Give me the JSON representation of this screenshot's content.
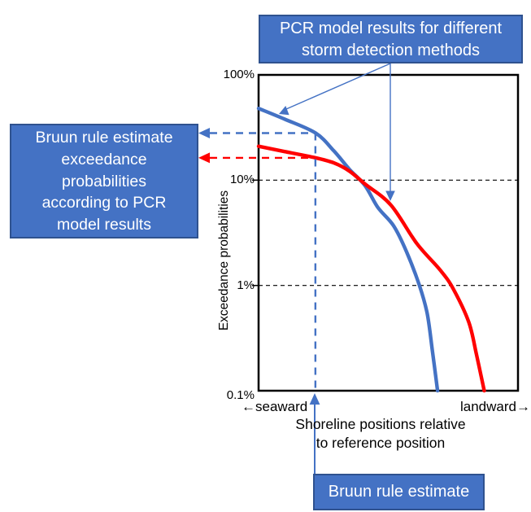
{
  "colors": {
    "accent_blue": "#4472C4",
    "accent_blue_dark": "#2F528F",
    "accent_red": "#FF0000",
    "axis_black": "#000000",
    "background": "#FFFFFF",
    "callout_text": "#FFFFFF"
  },
  "annotations": {
    "top_box": {
      "lines": [
        "PCR model results for different",
        "storm detection methods"
      ]
    },
    "left_box": {
      "lines": [
        "Bruun rule estimate",
        "exceedance",
        "probabilities",
        "according to PCR",
        "model results"
      ]
    },
    "bottom_box": {
      "label": "Bruun rule estimate"
    }
  },
  "axes": {
    "ylabel": "Exceedance probabilities",
    "xlabel_lines": [
      "Shoreline positions relative",
      "to reference position"
    ],
    "x_left_label": "←seaward",
    "x_right_label": "landward→",
    "y_tick_labels": [
      "100%",
      "10%",
      "1%",
      "0.1%"
    ]
  },
  "chart_data": {
    "type": "line",
    "title": "",
    "xlabel": "Shoreline positions relative to reference position",
    "ylabel": "Exceedance probabilities",
    "y_scale": "log",
    "ylim_pct": [
      0.1,
      100
    ],
    "y_ticks_pct": [
      100,
      10,
      1,
      0.1
    ],
    "gridlines_pct": [
      10,
      1
    ],
    "x_units": "relative (0 = left axis edge, 1 = right axis edge; axis unlabeled, seaward left / landward right)",
    "grid": "dashed horizontal at 10% and 1%",
    "legend_position": "none (identified by callout arrows)",
    "series": [
      {
        "name": "PCR model results for different storm detection methods",
        "color": "#4472C4",
        "points_relx_pct": [
          [
            0,
            48
          ],
          [
            0.1,
            38
          ],
          [
            0.22,
            28
          ],
          [
            0.29,
            19
          ],
          [
            0.35,
            12.7
          ],
          [
            0.41,
            8.9
          ],
          [
            0.46,
            5.5
          ],
          [
            0.52,
            3.7
          ],
          [
            0.57,
            2.1
          ],
          [
            0.62,
            1.0
          ],
          [
            0.65,
            0.54
          ],
          [
            0.67,
            0.24
          ],
          [
            0.69,
            0.1
          ]
        ]
      },
      {
        "name": "Bruun rule estimate curve",
        "color": "#FF0000",
        "points_relx_pct": [
          [
            0,
            21
          ],
          [
            0.1,
            18.7
          ],
          [
            0.22,
            16.3
          ],
          [
            0.29,
            14.6
          ],
          [
            0.35,
            12.2
          ],
          [
            0.41,
            9.2
          ],
          [
            0.51,
            5.8
          ],
          [
            0.61,
            2.5
          ],
          [
            0.7,
            1.4
          ],
          [
            0.75,
            0.93
          ],
          [
            0.81,
            0.45
          ],
          [
            0.84,
            0.22
          ],
          [
            0.87,
            0.1
          ]
        ]
      }
    ],
    "bruun_rule_position_rel_x": 0.219,
    "readings_at_bruun_position": {
      "blue_curve_pct": 28,
      "red_curve_pct": 16.3
    }
  }
}
